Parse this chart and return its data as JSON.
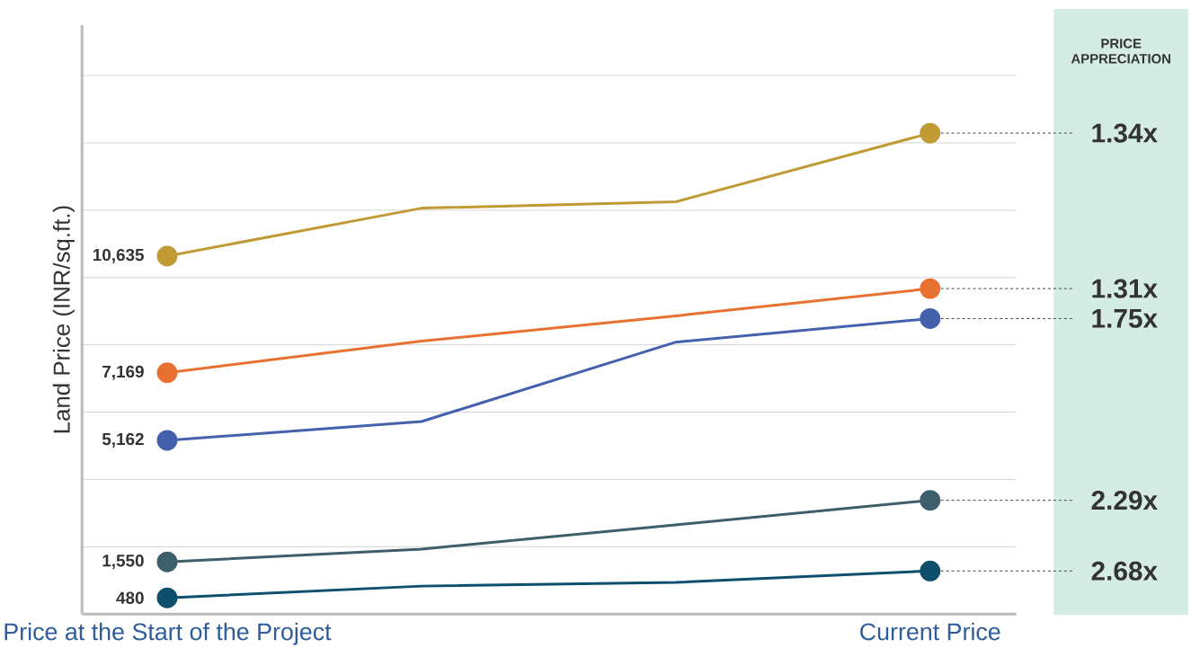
{
  "chart_data": {
    "type": "line",
    "ylabel": "Land Price (INR/sq.ft.)",
    "categories": [
      "Price at the Start of the Project",
      null,
      null,
      "Current Price"
    ],
    "ylim": [
      0,
      17500
    ],
    "yticks": [
      {
        "value": 2000,
        "label": null
      },
      {
        "value": 4000,
        "label": null
      },
      {
        "value": 6000,
        "label": null
      },
      {
        "value": 8000,
        "label": null
      },
      {
        "value": 10000,
        "label": null
      },
      {
        "value": 12000,
        "label": null
      },
      {
        "value": 14000,
        "label": null
      },
      {
        "value": 16000,
        "label": null
      }
    ],
    "grid": "y",
    "tick_labels": "x",
    "marker": "circle",
    "line_style": "solid",
    "series": [
      {
        "color": "#c09a35",
        "values": [
          10635,
          12060,
          12250,
          14290
        ],
        "value_labels": [
          "10,635",
          null,
          null,
          null
        ]
      },
      {
        "color": "#e87030",
        "values": [
          7169,
          8110,
          8860,
          9670
        ],
        "value_labels": [
          "7,169",
          null,
          null,
          null
        ]
      },
      {
        "color": "#4560ad",
        "values": [
          5162,
          5720,
          8080,
          8780
        ],
        "value_labels": [
          "5,162",
          null,
          null,
          null
        ]
      },
      {
        "color": "#3d5f6b",
        "values": [
          1550,
          1930,
          2650,
          3380
        ],
        "value_labels": [
          "1,550",
          null,
          null,
          null
        ]
      },
      {
        "color": "#0d4f6c",
        "values": [
          480,
          830,
          940,
          1280
        ],
        "value_labels": [
          "480",
          null,
          null,
          null
        ]
      }
    ],
    "annotations": [
      "PRICE APPRECIATION",
      {
        "text": "1.34x",
        "x": "Current Price",
        "y": 14290
      },
      {
        "text": "1.31x",
        "x": "Current Price",
        "y": 9670
      },
      {
        "text": "1.75x",
        "x": "Current Price",
        "y": 8780
      },
      {
        "text": "2.29x",
        "x": "Current Price",
        "y": 3380
      },
      {
        "text": "2.68x",
        "x": "Current Price",
        "y": 1280
      }
    ]
  }
}
